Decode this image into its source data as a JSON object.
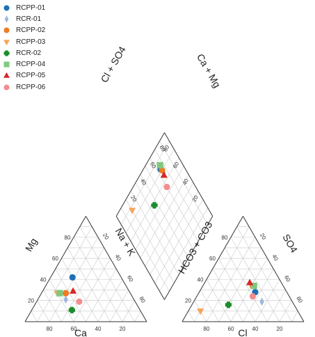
{
  "chart_data": {
    "type": "scatter",
    "subtype": "piper-diagram",
    "legend_position": "top-left",
    "grid": true,
    "grid_step_percent": 10,
    "tick_labels": [
      "20",
      "40",
      "60",
      "80"
    ],
    "axes": {
      "cation_triangle": {
        "left_side": "Mg",
        "right_side": "Na + K",
        "bottom": "Ca"
      },
      "anion_triangle": {
        "left_side": "HCO3 + CO3",
        "right_side": "SO4",
        "bottom": "Cl"
      },
      "diamond": {
        "upper_left": "Cl + SO4",
        "upper_right": "Ca + Mg"
      }
    },
    "units": "percent meq/L",
    "series": [
      {
        "name": "RCPP-01",
        "marker": "circle",
        "color": "#1f6fb5",
        "cation": {
          "Ca": 40,
          "Mg": 42,
          "NaK": 18
        },
        "anion": {
          "Cl": 46,
          "SO4": 28,
          "HCO3CO3": 26
        }
      },
      {
        "name": "RCR-01",
        "marker": "diamond",
        "color": "#9db8de",
        "cation": {
          "Ca": 56,
          "Mg": 21,
          "NaK": 23
        },
        "anion": {
          "Cl": 56,
          "SO4": 19,
          "HCO3CO3": 25
        }
      },
      {
        "name": "RCPP-02",
        "marker": "circle",
        "color": "#ef7c21",
        "cation": {
          "Ca": 53,
          "Mg": 27,
          "NaK": 20
        },
        "anion": {
          "Cl": 41,
          "SO4": 34,
          "HCO3CO3": 25
        }
      },
      {
        "name": "RCPP-03",
        "marker": "triangle-down",
        "color": "#f5a45a",
        "cation": {
          "Ca": 60,
          "Mg": 27,
          "NaK": 13
        },
        "anion": {
          "Cl": 10,
          "SO4": 10,
          "HCO3CO3": 80
        }
      },
      {
        "name": "RCR-02",
        "marker": "plus",
        "color": "#1a8c2b",
        "cation": {
          "Ca": 56,
          "Mg": 11,
          "NaK": 33
        },
        "anion": {
          "Cl": 30,
          "SO4": 16,
          "HCO3CO3": 54
        }
      },
      {
        "name": "RCPP-04",
        "marker": "square",
        "color": "#7fc97f",
        "cation": {
          "Ca": 58,
          "Mg": 27,
          "NaK": 15
        },
        "anion": {
          "Cl": 42,
          "SO4": 34,
          "HCO3CO3": 24
        }
      },
      {
        "name": "RCPP-05",
        "marker": "triangle-up",
        "color": "#d62728",
        "cation": {
          "Ca": 46,
          "Mg": 29,
          "NaK": 25
        },
        "anion": {
          "Cl": 37,
          "SO4": 37,
          "HCO3CO3": 26
        }
      },
      {
        "name": "RCPP-06",
        "marker": "circle",
        "color": "#f28e8e",
        "cation": {
          "Ca": 46,
          "Mg": 19,
          "NaK": 35
        },
        "anion": {
          "Cl": 46,
          "SO4": 24,
          "HCO3CO3": 30
        }
      }
    ]
  }
}
